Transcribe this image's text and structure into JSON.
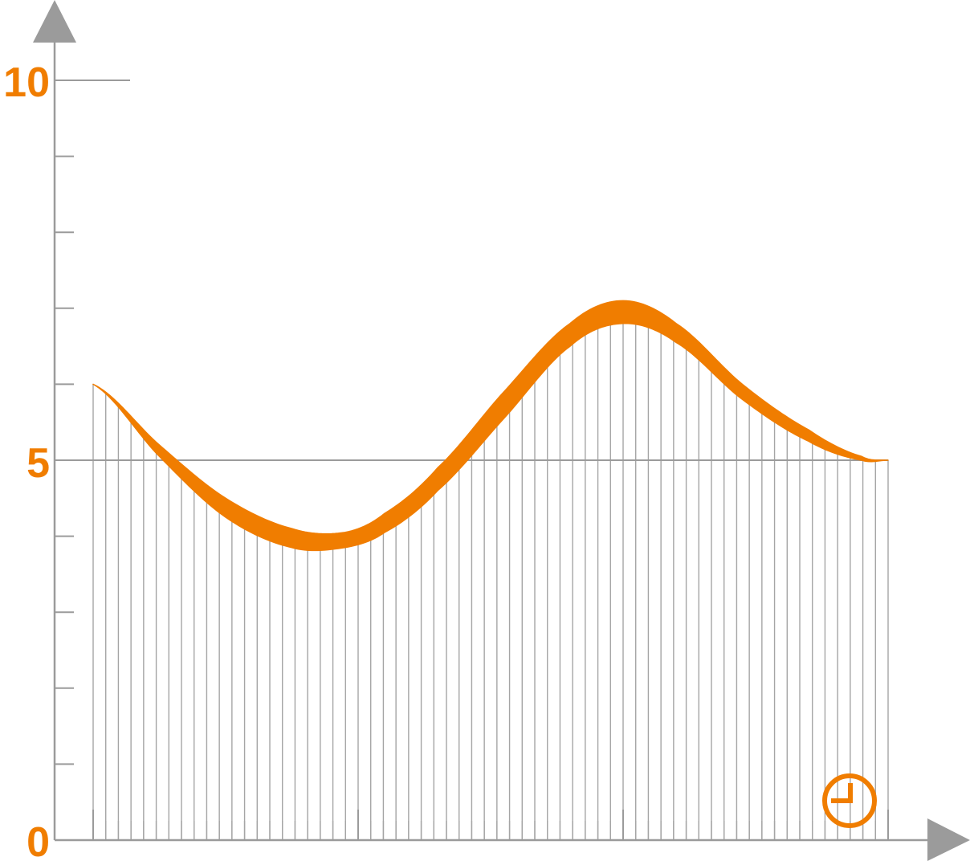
{
  "colors": {
    "accent": "#f07d00",
    "axis": "#9b9b9b",
    "gridline": "#a5a5a5",
    "background": "#ffffff"
  },
  "icons": {
    "x_axis_arrow": "triangle-right",
    "y_axis_arrow": "triangle-up",
    "time_marker": "clock-icon"
  },
  "chart_data": {
    "type": "area",
    "title": "",
    "xlabel": "",
    "ylabel": "",
    "y_tick_labels": [
      "0",
      "5",
      "10"
    ],
    "ylim": [
      0,
      10
    ],
    "y_minor_step": 1,
    "xlim": [
      0,
      3.15
    ],
    "x_major_ticks": [
      0,
      1,
      2,
      3
    ],
    "x_minor_ticks": 63,
    "grid": false,
    "reference_line": {
      "y": 5
    },
    "series": [
      {
        "style": "band",
        "x": [
          0,
          0.25,
          0.5,
          0.75,
          0.95,
          1.1,
          1.3,
          1.55,
          1.8,
          2.0,
          2.2,
          2.45,
          2.7,
          2.9,
          3.0
        ],
        "upper": [
          6.0,
          5.2,
          4.5,
          4.1,
          4.05,
          4.3,
          4.9,
          5.9,
          6.8,
          7.1,
          6.8,
          6.0,
          5.4,
          5.05,
          5.0
        ],
        "lower": [
          6.0,
          5.05,
          4.25,
          3.85,
          3.85,
          4.05,
          4.6,
          5.55,
          6.5,
          6.8,
          6.55,
          5.8,
          5.25,
          5.0,
          5.0
        ]
      }
    ]
  }
}
